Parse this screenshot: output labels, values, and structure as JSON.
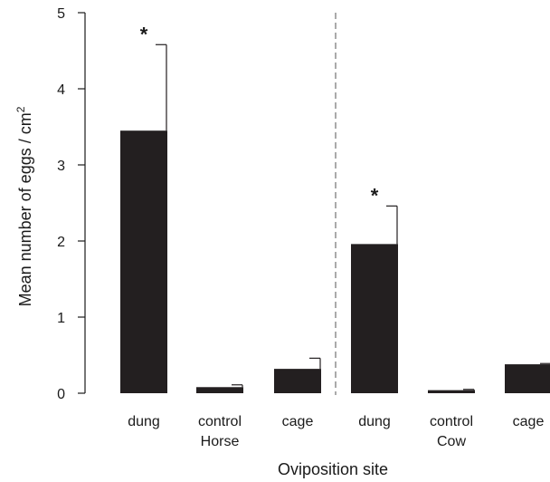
{
  "chart_data": {
    "type": "bar",
    "categories": [
      "dung",
      "control",
      "cage",
      "dung",
      "control",
      "cage"
    ],
    "groups": [
      {
        "name": "Horse",
        "categories": [
          "dung",
          "control",
          "cage"
        ]
      },
      {
        "name": "Cow",
        "categories": [
          "dung",
          "control",
          "cage"
        ]
      }
    ],
    "values": [
      3.45,
      0.08,
      0.32,
      1.96,
      0.04,
      0.38
    ],
    "errors": [
      1.13,
      0.03,
      0.14,
      0.5,
      0.01,
      0.01
    ],
    "significance": [
      "*",
      "",
      "",
      "*",
      "",
      ""
    ],
    "xlabel": "Oviposition site",
    "ylabel": "Mean number of eggs / cm",
    "ylabel_superscript": "2",
    "ylim": [
      0,
      5
    ],
    "yticks": [
      0,
      1,
      2,
      3,
      4,
      5
    ],
    "grid": false,
    "colors": {
      "bar": "#231f20",
      "axis": "#1a1a1a",
      "separator": "#555555"
    }
  }
}
